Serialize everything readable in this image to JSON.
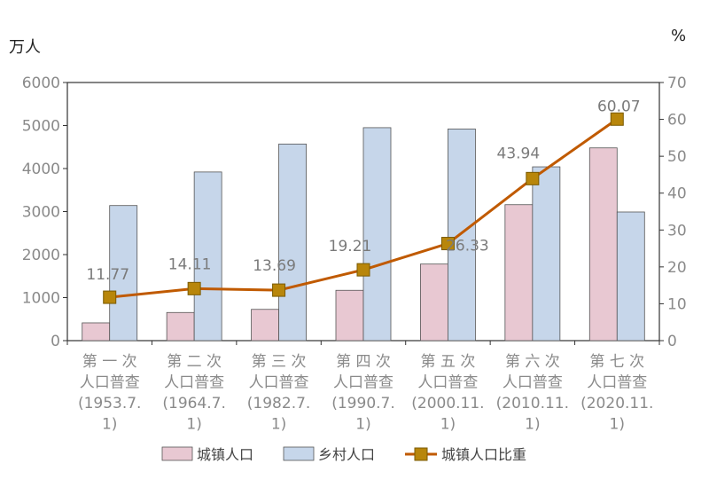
{
  "chart_data": {
    "type": "bar",
    "left_unit": "万人",
    "right_unit": "%",
    "categories": [
      [
        "第 一 次",
        "人口普查",
        "(1953.7.",
        "1)"
      ],
      [
        "第 二 次",
        "人口普查",
        "(1964.7.",
        "1)"
      ],
      [
        "第 三 次",
        "人口普查",
        "(1982.7.",
        "1)"
      ],
      [
        "第 四 次",
        "人口普查",
        "(1990.7.",
        "1)"
      ],
      [
        "第 五 次",
        "人口普查",
        "(2000.11.",
        "1)"
      ],
      [
        "第 六 次",
        "人口普查",
        "(2010.11.",
        "1)"
      ],
      [
        "第 七 次",
        "人口普查",
        "(2020.11.",
        "1)"
      ]
    ],
    "y_left": {
      "min": 0,
      "max": 6000,
      "ticks": [
        "0",
        "1000",
        "2000",
        "3000",
        "4000",
        "5000",
        "6000"
      ]
    },
    "y_right": {
      "min": 0,
      "max": 70,
      "ticks": [
        "0",
        "10",
        "20",
        "30",
        "40",
        "50",
        "60",
        "70"
      ]
    },
    "series": [
      {
        "name": "城镇人口",
        "type": "bar",
        "axis": "left",
        "color": "#e8c8d2",
        "stroke": "#555555",
        "values": [
          413,
          654,
          727,
          1170,
          1780,
          3160,
          4480
        ]
      },
      {
        "name": "乡村人口",
        "type": "bar",
        "axis": "left",
        "color": "#c6d6ea",
        "stroke": "#555555",
        "values": [
          3140,
          3920,
          4570,
          4950,
          4920,
          4040,
          2990
        ]
      },
      {
        "name": "城镇人口比重",
        "type": "line",
        "axis": "right",
        "color": "#c05a00",
        "marker_color": "#b8860b",
        "values": [
          11.77,
          14.11,
          13.69,
          19.21,
          26.33,
          43.94,
          60.07
        ],
        "labels": [
          "11.77",
          "14.11",
          "13.69",
          "19.21",
          "26.33",
          "43.94",
          "60.07"
        ]
      }
    ],
    "legend_position": "bottom",
    "grid": false
  }
}
